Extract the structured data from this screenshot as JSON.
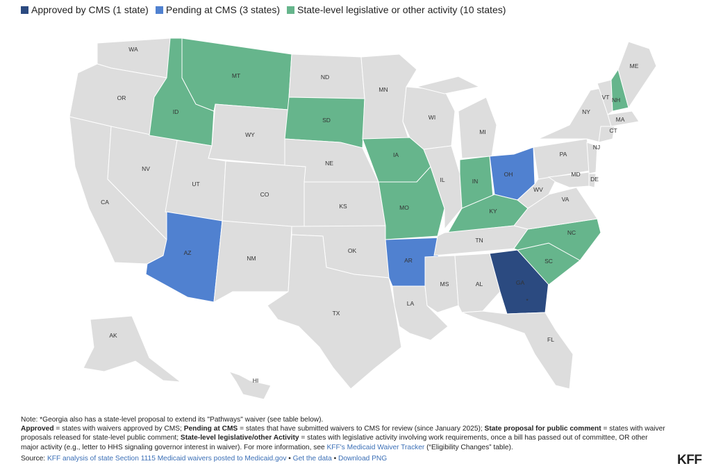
{
  "legend": [
    {
      "key": "approved",
      "label": "Approved by CMS (1 state)",
      "color": "#2b4a80"
    },
    {
      "key": "pending",
      "label": "Pending at CMS (3 states)",
      "color": "#5081d0"
    },
    {
      "key": "activity",
      "label": "State-level legislative or other activity (10 states)",
      "color": "#66b58c"
    }
  ],
  "colors": {
    "default": "#dddddd",
    "border": "#ffffff"
  },
  "states": [
    {
      "abbr": "WA",
      "status": "default"
    },
    {
      "abbr": "OR",
      "status": "default"
    },
    {
      "abbr": "CA",
      "status": "default"
    },
    {
      "abbr": "NV",
      "status": "default"
    },
    {
      "abbr": "ID",
      "status": "activity"
    },
    {
      "abbr": "MT",
      "status": "activity"
    },
    {
      "abbr": "WY",
      "status": "default"
    },
    {
      "abbr": "UT",
      "status": "default"
    },
    {
      "abbr": "AZ",
      "status": "pending"
    },
    {
      "abbr": "CO",
      "status": "default"
    },
    {
      "abbr": "NM",
      "status": "default"
    },
    {
      "abbr": "ND",
      "status": "default"
    },
    {
      "abbr": "SD",
      "status": "activity"
    },
    {
      "abbr": "NE",
      "status": "default"
    },
    {
      "abbr": "KS",
      "status": "default"
    },
    {
      "abbr": "OK",
      "status": "default"
    },
    {
      "abbr": "TX",
      "status": "default"
    },
    {
      "abbr": "MN",
      "status": "default"
    },
    {
      "abbr": "IA",
      "status": "activity"
    },
    {
      "abbr": "MO",
      "status": "activity"
    },
    {
      "abbr": "AR",
      "status": "pending"
    },
    {
      "abbr": "LA",
      "status": "default"
    },
    {
      "abbr": "WI",
      "status": "default"
    },
    {
      "abbr": "IL",
      "status": "default"
    },
    {
      "abbr": "MI",
      "status": "default"
    },
    {
      "abbr": "IN",
      "status": "activity"
    },
    {
      "abbr": "OH",
      "status": "pending"
    },
    {
      "abbr": "KY",
      "status": "activity"
    },
    {
      "abbr": "TN",
      "status": "default"
    },
    {
      "abbr": "MS",
      "status": "default"
    },
    {
      "abbr": "AL",
      "status": "default"
    },
    {
      "abbr": "GA",
      "status": "approved"
    },
    {
      "abbr": "FL",
      "status": "default"
    },
    {
      "abbr": "SC",
      "status": "activity"
    },
    {
      "abbr": "NC",
      "status": "activity"
    },
    {
      "abbr": "VA",
      "status": "default"
    },
    {
      "abbr": "WV",
      "status": "default"
    },
    {
      "abbr": "PA",
      "status": "default"
    },
    {
      "abbr": "NY",
      "status": "default"
    },
    {
      "abbr": "VT",
      "status": "default"
    },
    {
      "abbr": "NH",
      "status": "activity"
    },
    {
      "abbr": "ME",
      "status": "default"
    },
    {
      "abbr": "MA",
      "status": "default"
    },
    {
      "abbr": "CT",
      "status": "default"
    },
    {
      "abbr": "NJ",
      "status": "default"
    },
    {
      "abbr": "DE",
      "status": "default"
    },
    {
      "abbr": "MD",
      "status": "default"
    },
    {
      "abbr": "AK",
      "status": "default"
    },
    {
      "abbr": "HI",
      "status": "default"
    }
  ],
  "ga_marker": "*",
  "notes": {
    "note_line": "Note: *Georgia also has a state-level proposal to extend its \"Pathways\" waiver (see table below).",
    "approved_term": "Approved",
    "approved_def": " = states with waivers approved by CMS; ",
    "pending_term": "Pending at CMS",
    "pending_def": " = states that have submitted waivers to CMS for review (since January 2025); ",
    "proposal_term": "State proposal for public comment",
    "proposal_def": " = states with waiver proposals released for state-level public comment; ",
    "activity_term": "State-level legislative/other Activity",
    "activity_def": " = states with legislative activity involving work requirements, once a bill has passed out of committee, OR other major activity (e.g., letter to HHS signaling governor interest in waiver). For more information, see ",
    "tracker_link": "KFF's Medicaid Waiver Tracker",
    "tracker_suffix": " (“Eligibility Changes” table).",
    "source_prefix": "Source: ",
    "source_link": "KFF analysis of state Section 1115 Medicaid waivers posted to Medicaid.gov",
    "sep1": " • ",
    "get_data": "Get the data",
    "sep2": " • ",
    "download": "Download PNG"
  },
  "logo": "KFF"
}
